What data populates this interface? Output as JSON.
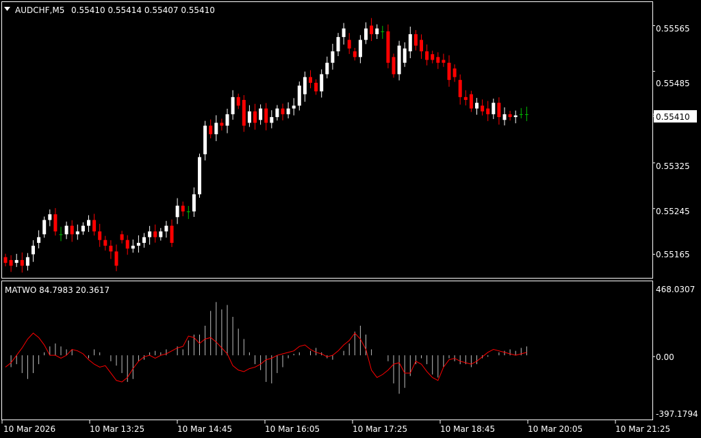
{
  "header": {
    "symbol": "AUDCHF,M5",
    "quote": "0.55410 0.55414 0.55407 0.55410"
  },
  "price_axis": {
    "labels": [
      "0.55565",
      "0.55485",
      "0.55410",
      "0.55325",
      "0.55245",
      "0.55165"
    ],
    "current_price_label": "0.55410"
  },
  "indicator": {
    "label": "MATWO 84.7983 20.3617",
    "axis_labels": [
      "468.0307",
      "0.00",
      "-397.1794"
    ]
  },
  "time_axis": {
    "labels": [
      "10 Mar 2026",
      "10 Mar 13:25",
      "10 Mar 14:45",
      "10 Mar 16:05",
      "10 Mar 17:25",
      "10 Mar 18:45",
      "10 Mar 20:05",
      "10 Mar 21:25"
    ]
  },
  "colors": {
    "background": "#000000",
    "frame": "#ffffff",
    "bull_candle": "#ffffff",
    "bear_candle": "#ff0000",
    "doji_candle": "#00c000",
    "indicator_line": "#ff0000",
    "histogram": "#c0c0c0",
    "price_tag_bg": "#ffffff",
    "price_tag_text": "#000000"
  },
  "chart_data": [
    {
      "type": "candlestick",
      "symbol": "AUDCHF",
      "timeframe": "M5",
      "y_range": [
        0.55125,
        0.55605
      ],
      "open": [
        0.5516,
        0.55155,
        0.5515,
        0.55155,
        0.55145,
        0.55165,
        0.55185,
        0.552,
        0.55225,
        0.55235,
        0.552,
        0.552,
        0.55215,
        0.552,
        0.55205,
        0.55215,
        0.55225,
        0.55205,
        0.5519,
        0.5518,
        0.5517,
        0.552,
        0.5519,
        0.55175,
        0.5518,
        0.55185,
        0.55195,
        0.55205,
        0.55195,
        0.55205,
        0.55215,
        0.5523,
        0.5525,
        0.5524,
        0.5524,
        0.5527,
        0.5534,
        0.5539,
        0.55375,
        0.55395,
        0.5539,
        0.5541,
        0.5544,
        0.55435,
        0.55395,
        0.55415,
        0.554,
        0.5542,
        0.55395,
        0.55405,
        0.5542,
        0.5541,
        0.5542,
        0.55425,
        0.55445,
        0.55475,
        0.55465,
        0.5545,
        0.5548,
        0.555,
        0.5552,
        0.55545,
        0.5554,
        0.5552,
        0.5551,
        0.5554,
        0.55565,
        0.5555,
        0.55555,
        0.55555,
        0.5551,
        0.5548,
        0.555,
        0.5552,
        0.5555,
        0.5554,
        0.5552,
        0.55515,
        0.5551,
        0.55505,
        0.555,
        0.5549,
        0.5547,
        0.5544,
        0.55445,
        0.5542,
        0.55425,
        0.5542,
        0.5541,
        0.5543,
        0.554,
        0.5541,
        0.55405,
        0.5541,
        0.5541
      ],
      "close": [
        0.5515,
        0.55145,
        0.55155,
        0.55145,
        0.5516,
        0.5518,
        0.55195,
        0.55225,
        0.55235,
        0.55205,
        0.552,
        0.55215,
        0.552,
        0.55205,
        0.55215,
        0.55225,
        0.55205,
        0.5519,
        0.5518,
        0.5517,
        0.55145,
        0.5519,
        0.55175,
        0.5518,
        0.55185,
        0.55195,
        0.55205,
        0.55195,
        0.55205,
        0.55215,
        0.55185,
        0.5525,
        0.5524,
        0.5524,
        0.5527,
        0.55335,
        0.5539,
        0.55375,
        0.55395,
        0.5539,
        0.5541,
        0.5544,
        0.55425,
        0.5539,
        0.55415,
        0.55395,
        0.5542,
        0.55395,
        0.55405,
        0.5542,
        0.5541,
        0.5542,
        0.55425,
        0.5546,
        0.55475,
        0.55465,
        0.5545,
        0.5548,
        0.555,
        0.5552,
        0.55545,
        0.5556,
        0.55525,
        0.5551,
        0.5554,
        0.5556,
        0.5555,
        0.5556,
        0.55555,
        0.555,
        0.5548,
        0.5553,
        0.55525,
        0.5555,
        0.5553,
        0.5552,
        0.55505,
        0.55505,
        0.555,
        0.555,
        0.5547,
        0.55475,
        0.5544,
        0.55435,
        0.5542,
        0.5543,
        0.55415,
        0.5541,
        0.5543,
        0.55405,
        0.5541,
        0.55405,
        0.55408,
        0.5541,
        0.5541
      ]
    },
    {
      "type": "histogram+line",
      "name": "MATWO",
      "y_range": [
        -397.1794,
        468.0307
      ],
      "histogram": [
        0,
        -80,
        -60,
        -120,
        -160,
        -120,
        -60,
        20,
        60,
        80,
        60,
        40,
        40,
        0,
        0,
        -20,
        40,
        20,
        0,
        -40,
        -70,
        -120,
        -180,
        -160,
        -40,
        -30,
        20,
        30,
        20,
        40,
        0,
        60,
        40,
        100,
        140,
        140,
        200,
        300,
        360,
        310,
        340,
        260,
        180,
        110,
        20,
        -60,
        -100,
        -180,
        -190,
        -120,
        -80,
        -20,
        10,
        20,
        0,
        30,
        50,
        20,
        -20,
        -30,
        0,
        30,
        80,
        160,
        200,
        140,
        40,
        0,
        0,
        -40,
        -190,
        -260,
        -220,
        -140,
        -60,
        -20,
        -60,
        -130,
        -150,
        -80,
        -20,
        -40,
        -60,
        -60,
        -80,
        -60,
        -20,
        -10,
        0,
        20,
        30,
        40,
        30,
        50,
        60
      ],
      "line": [
        -80,
        -50,
        0,
        50,
        110,
        150,
        120,
        70,
        0,
        0,
        -20,
        0,
        40,
        30,
        10,
        -30,
        -60,
        -80,
        -70,
        -120,
        -170,
        -180,
        -150,
        -90,
        -40,
        -10,
        0,
        -20,
        0,
        10,
        30,
        50,
        60,
        130,
        120,
        80,
        110,
        120,
        90,
        50,
        10,
        -70,
        -100,
        -110,
        -90,
        -80,
        -60,
        -30,
        -20,
        0,
        10,
        20,
        30,
        60,
        70,
        40,
        20,
        10,
        -10,
        0,
        30,
        70,
        100,
        150,
        110,
        40,
        -100,
        -150,
        -130,
        -100,
        -60,
        -50,
        -120,
        -120,
        -40,
        -60,
        -110,
        -150,
        -170,
        -80,
        -30,
        -20,
        -40,
        -50,
        -60,
        -40,
        -10,
        20,
        40,
        30,
        20,
        10,
        0,
        10,
        20
      ]
    }
  ]
}
